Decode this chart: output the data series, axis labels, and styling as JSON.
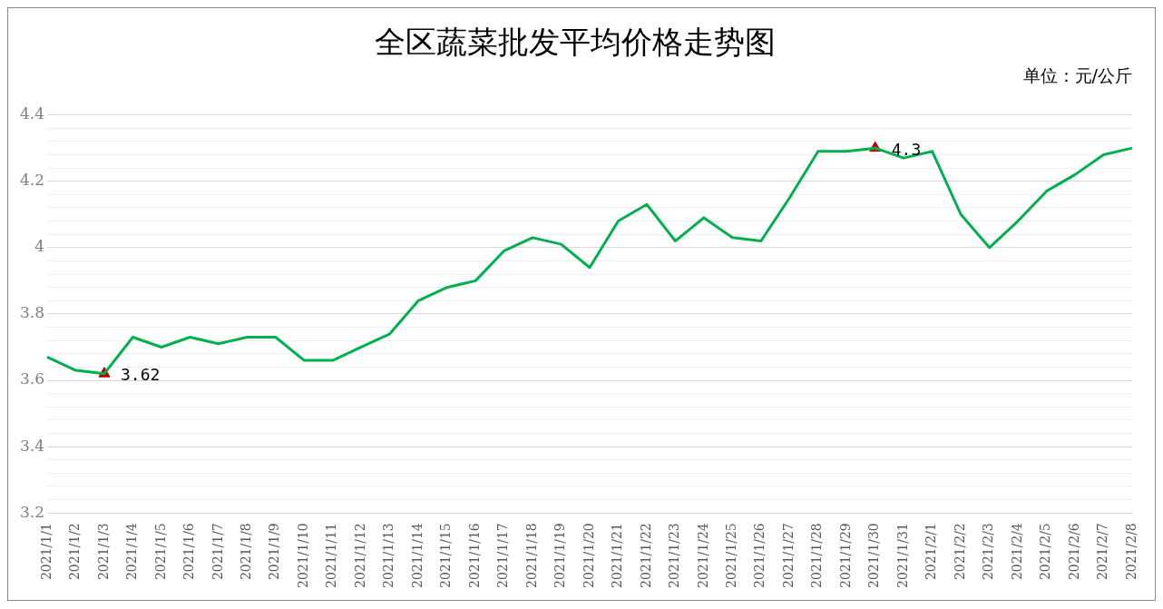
{
  "chart_data": {
    "type": "line",
    "title": "全区蔬菜批发平均价格走势图",
    "subtitle": "单位：元/公斤",
    "categories": [
      "2021/1/1",
      "2021/1/2",
      "2021/1/3",
      "2021/1/4",
      "2021/1/5",
      "2021/1/6",
      "2021/1/7",
      "2021/1/8",
      "2021/1/9",
      "2021/1/10",
      "2021/1/11",
      "2021/1/12",
      "2021/1/13",
      "2021/1/14",
      "2021/1/15",
      "2021/1/16",
      "2021/1/17",
      "2021/1/18",
      "2021/1/19",
      "2021/1/20",
      "2021/1/21",
      "2021/1/22",
      "2021/1/23",
      "2021/1/24",
      "2021/1/25",
      "2021/1/26",
      "2021/1/27",
      "2021/1/28",
      "2021/1/29",
      "2021/1/30",
      "2021/1/31",
      "2021/2/1",
      "2021/2/2",
      "2021/2/3",
      "2021/2/4",
      "2021/2/5",
      "2021/2/6",
      "2021/2/7",
      "2021/2/8"
    ],
    "series": [
      {
        "color": "#00b050",
        "marker": "none",
        "values": [
          3.67,
          3.63,
          3.62,
          3.73,
          3.7,
          3.73,
          3.71,
          3.73,
          3.73,
          3.66,
          3.66,
          3.7,
          3.74,
          3.84,
          3.88,
          3.9,
          3.99,
          4.03,
          4.01,
          3.94,
          4.08,
          4.13,
          4.02,
          4.09,
          4.03,
          4.02,
          4.15,
          4.29,
          4.29,
          4.3,
          4.27,
          4.29,
          4.1,
          4.0,
          4.08,
          4.17,
          4.22,
          4.28,
          4.3
        ]
      },
      {
        "type": "scatter",
        "color": "#c00000",
        "marker": "triangle",
        "x": [
          "2021/1/3",
          "2021/1/30"
        ],
        "values": [
          3.62,
          4.3
        ],
        "value_labels": [
          "3.62",
          "4.3"
        ]
      }
    ],
    "ylim": [
      3.2,
      4.4
    ],
    "yticks": [
      3.2,
      {
        "value": 3.24,
        "label": null
      },
      {
        "value": 3.28,
        "label": null
      },
      {
        "value": 3.32,
        "label": null
      },
      {
        "value": 3.36,
        "label": null
      },
      3.4,
      {
        "value": 3.44,
        "label": null
      },
      {
        "value": 3.48,
        "label": null
      },
      {
        "value": 3.52,
        "label": null
      },
      {
        "value": 3.56,
        "label": null
      },
      3.6,
      {
        "value": 3.64,
        "label": null
      },
      {
        "value": 3.68,
        "label": null
      },
      {
        "value": 3.72,
        "label": null
      },
      {
        "value": 3.76,
        "label": null
      },
      3.8,
      {
        "value": 3.84,
        "label": null
      },
      {
        "value": 3.88,
        "label": null
      },
      {
        "value": 3.92,
        "label": null
      },
      {
        "value": 3.96,
        "label": null
      },
      4,
      {
        "value": 4.04,
        "label": null
      },
      {
        "value": 4.08,
        "label": null
      },
      {
        "value": 4.12,
        "label": null
      },
      {
        "value": 4.16,
        "label": null
      },
      4.2,
      {
        "value": 4.24,
        "label": null
      },
      {
        "value": 4.28,
        "label": null
      },
      {
        "value": 4.32,
        "label": null
      },
      {
        "value": 4.36,
        "label": null
      },
      4.4
    ],
    "grid": "y",
    "legend": false,
    "line_style": "solid"
  }
}
